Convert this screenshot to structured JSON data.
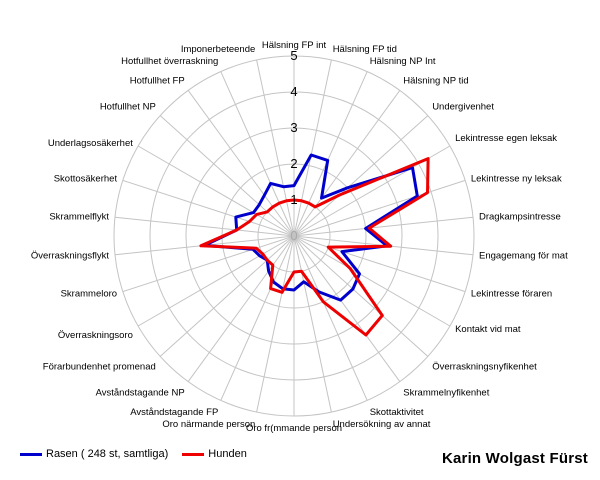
{
  "chart_data": {
    "type": "radar",
    "rlim": [
      0,
      5
    ],
    "ticks": [
      "0",
      "1",
      "2",
      "3",
      "4",
      "5"
    ],
    "grid": true,
    "legend_position": "bottom-left",
    "categories": [
      "Hälsning FP int",
      "Hälsning FP tid",
      "Hälsning NP Int",
      "Hälsning NP tid",
      "Undergivenhet",
      "Lekintresse egen leksak",
      "Lekintresse ny leksak",
      "Dragkampsintresse",
      "Engagemang för mat",
      "Lekintresse föraren",
      "Kontakt vid mat",
      "Överraskningsnyfikenhet",
      "Skrammelnyfikenhet",
      "Skottaktivitet",
      "Undersökning av annat",
      "Oro fr(mmande person",
      "Oro närmande person",
      "Avståndstagande FP",
      "Avståndstagande NP",
      "Förarbundenhet promenad",
      "Överraskningsoro",
      "Skrammeloro",
      "Överraskningsflykt",
      "Skrammelflykt",
      "Skottosäkerhet",
      "Underlagsosäkerhet",
      "Hotfullhet NP",
      "Hotfullhet FP",
      "Hotfullhet överraskning",
      "Imponerbeteende"
    ],
    "series": [
      {
        "name": "Rasen ( 248 st, samtliga)",
        "color": "#0000cc",
        "values": [
          1.4,
          2.3,
          2.3,
          1.3,
          2.0,
          3.8,
          3.6,
          2.0,
          2.6,
          1.4,
          2.1,
          2.2,
          2.2,
          1.7,
          1.3,
          1.5,
          1.5,
          1.4,
          1.2,
          1.0,
          1.1,
          1.2,
          2.5,
          1.6,
          1.7,
          1.3,
          1.3,
          1.4,
          1.6,
          1.4
        ]
      },
      {
        "name": "Hunden",
        "color": "#ee0000",
        "values": [
          1.0,
          1.0,
          1.0,
          1.0,
          1.7,
          4.3,
          3.9,
          2.1,
          2.7,
          1.0,
          1.8,
          3.3,
          3.4,
          2.0,
          1.0,
          1.0,
          1.6,
          1.6,
          1.0,
          1.0,
          1.0,
          1.1,
          2.6,
          1.6,
          1.3,
          1.2,
          1.0,
          1.0,
          1.0,
          1.0
        ]
      }
    ]
  },
  "credit": "Karin Wolgast Fürst"
}
